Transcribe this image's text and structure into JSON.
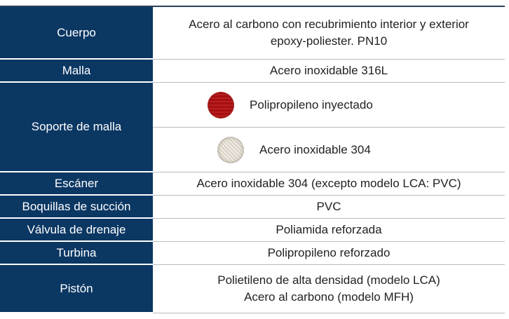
{
  "table": {
    "rows": [
      {
        "label": "Cuerpo",
        "values": [
          "Acero al carbono con recubrimiento interior y exterior epoxy-poliester. PN10"
        ]
      },
      {
        "label": "Malla",
        "values": [
          "Acero inoxidable 316L"
        ]
      },
      {
        "label": "Soporte de malla",
        "values": [
          "Polipropileno inyectado",
          "Acero inoxidable 304"
        ]
      },
      {
        "label": "Escáner",
        "values": [
          "Acero inoxidable 304 (excepto modelo LCA: PVC)"
        ]
      },
      {
        "label": "Boquillas de succión",
        "values": [
          "PVC"
        ]
      },
      {
        "label": "Válvula de drenaje",
        "values": [
          "Poliamida reforzada"
        ]
      },
      {
        "label": "Turbina",
        "values": [
          "Polipropileno reforzado"
        ]
      },
      {
        "label": "Pistón",
        "values": [
          "Polietileno de alta densidad (modelo LCA)\nAcero al carbono (modelo MFH)"
        ]
      }
    ]
  }
}
